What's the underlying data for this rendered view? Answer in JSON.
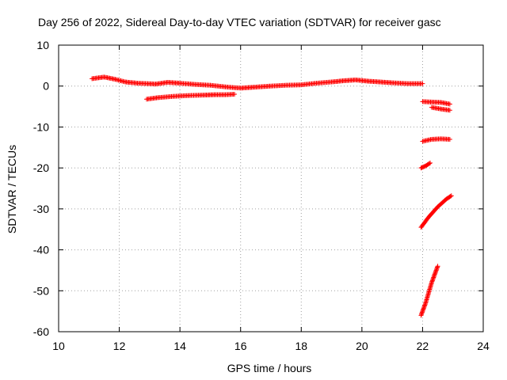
{
  "chart_data": {
    "type": "scatter",
    "title": "Day 256 of 2022, Sidereal Day-to-day VTEC variation (SDTVAR) for receiver gasc",
    "xlabel": "GPS time / hours",
    "ylabel": "SDTVAR / TECUs",
    "xlim": [
      10,
      24
    ],
    "ylim": [
      -60,
      10
    ],
    "xticks": [
      10,
      12,
      14,
      16,
      18,
      20,
      22,
      24
    ],
    "yticks": [
      -60,
      -50,
      -40,
      -30,
      -20,
      -10,
      0,
      10
    ],
    "grid": true,
    "marker": "plus",
    "color": "#ff0000",
    "series": [
      {
        "name": "main-track",
        "points": [
          [
            11.1,
            1.8
          ],
          [
            11.5,
            2.2
          ],
          [
            11.9,
            1.6
          ],
          [
            12.2,
            1.0
          ],
          [
            12.6,
            0.7
          ],
          [
            13.2,
            0.5
          ],
          [
            13.6,
            0.9
          ],
          [
            14.0,
            0.7
          ],
          [
            14.5,
            0.4
          ],
          [
            15.0,
            0.2
          ],
          [
            15.5,
            -0.2
          ],
          [
            16.0,
            -0.5
          ],
          [
            16.4,
            -0.3
          ],
          [
            17.0,
            0.0
          ],
          [
            17.5,
            0.2
          ],
          [
            18.0,
            0.3
          ],
          [
            18.5,
            0.7
          ],
          [
            19.0,
            1.0
          ],
          [
            19.4,
            1.3
          ],
          [
            19.8,
            1.5
          ],
          [
            20.2,
            1.2
          ],
          [
            20.6,
            1.0
          ],
          [
            21.0,
            0.8
          ],
          [
            21.5,
            0.6
          ],
          [
            22.0,
            0.6
          ]
        ]
      },
      {
        "name": "lower-track",
        "points": [
          [
            12.9,
            -3.2
          ],
          [
            13.3,
            -2.8
          ],
          [
            13.8,
            -2.5
          ],
          [
            14.3,
            -2.3
          ],
          [
            14.8,
            -2.2
          ],
          [
            15.2,
            -2.1
          ],
          [
            15.5,
            -2.1
          ],
          [
            15.8,
            -2.0
          ]
        ]
      },
      {
        "name": "pass-a",
        "points": [
          [
            22.0,
            -3.8
          ],
          [
            22.3,
            -3.9
          ],
          [
            22.6,
            -4.0
          ],
          [
            22.9,
            -4.4
          ]
        ]
      },
      {
        "name": "pass-b",
        "points": [
          [
            22.3,
            -5.2
          ],
          [
            22.6,
            -5.6
          ],
          [
            22.9,
            -5.9
          ]
        ]
      },
      {
        "name": "pass-c",
        "points": [
          [
            22.0,
            -13.5
          ],
          [
            22.3,
            -13.0
          ],
          [
            22.6,
            -12.9
          ],
          [
            22.9,
            -13.0
          ]
        ]
      },
      {
        "name": "pass-d",
        "points": [
          [
            21.95,
            -20.0
          ],
          [
            22.1,
            -19.5
          ],
          [
            22.25,
            -18.8
          ]
        ]
      },
      {
        "name": "pass-e",
        "points": [
          [
            21.95,
            -34.5
          ],
          [
            22.2,
            -32.0
          ],
          [
            22.5,
            -29.5
          ],
          [
            22.8,
            -27.5
          ],
          [
            22.95,
            -26.8
          ]
        ]
      },
      {
        "name": "pass-f",
        "points": [
          [
            21.95,
            -56.0
          ],
          [
            22.1,
            -53.0
          ],
          [
            22.2,
            -50.5
          ],
          [
            22.3,
            -48.0
          ],
          [
            22.4,
            -46.0
          ],
          [
            22.5,
            -44.0
          ]
        ]
      }
    ]
  }
}
